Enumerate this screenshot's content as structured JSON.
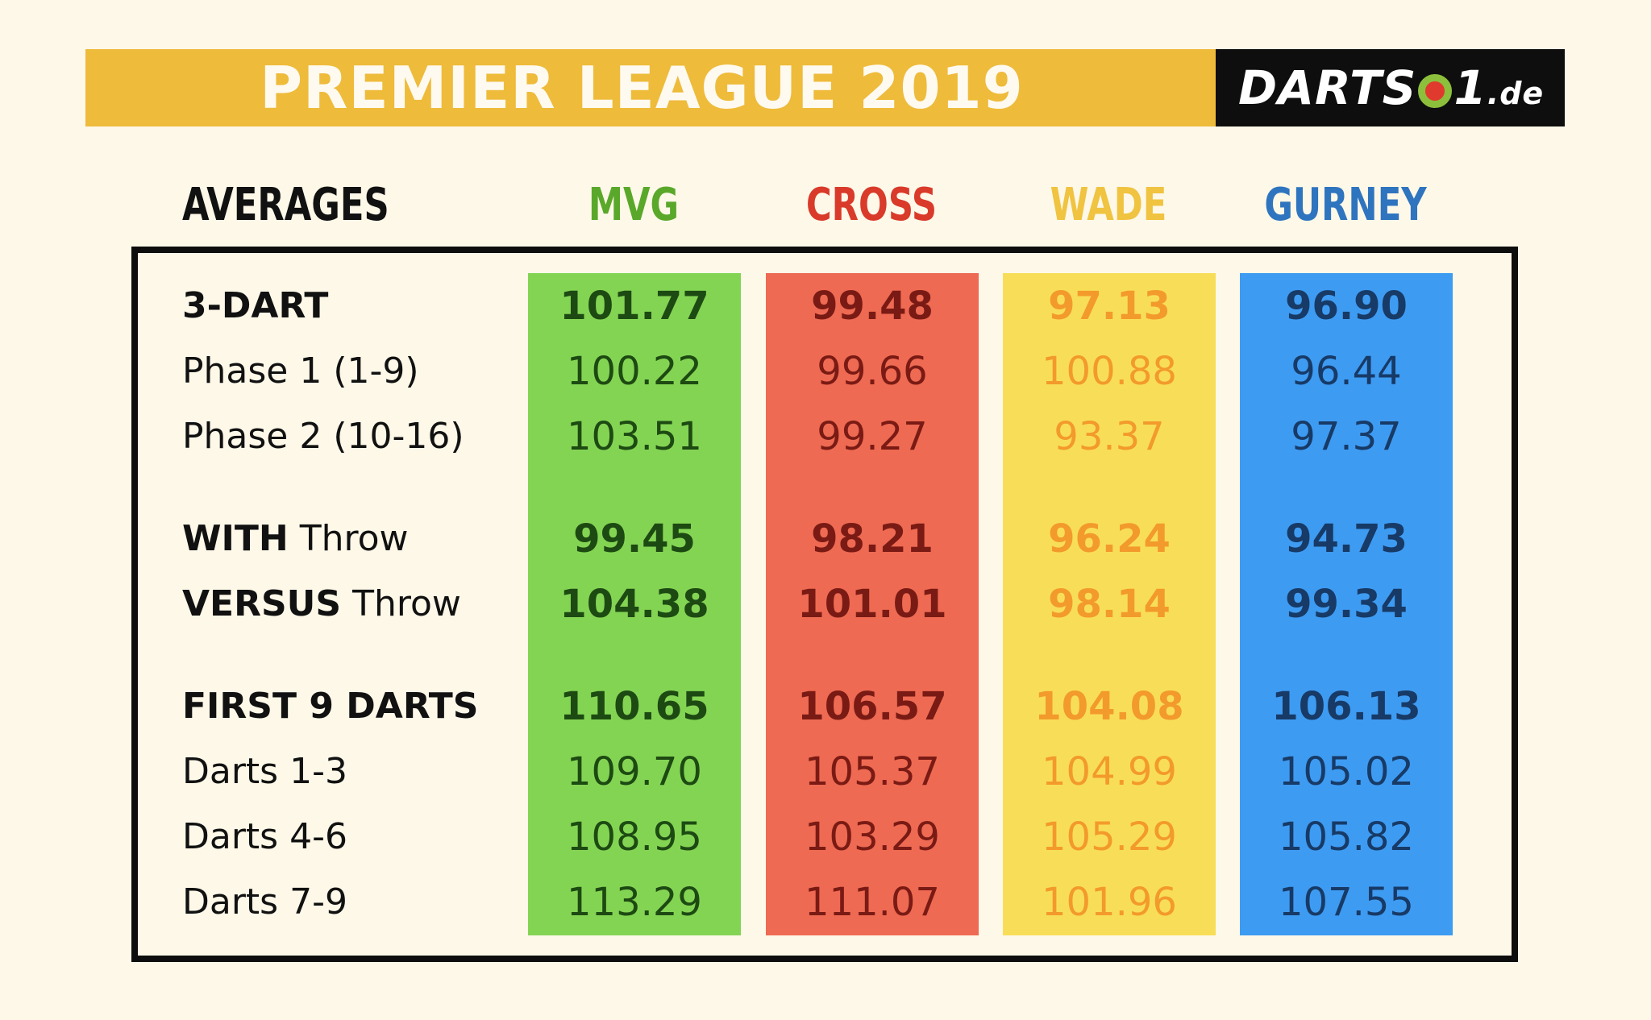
{
  "banner": {
    "title": "PREMIER LEAGUE 2019",
    "color": "#eebb3b"
  },
  "logo": {
    "text_main": "DARTS",
    "text_num": "1",
    "text_suffix": ".de"
  },
  "chart_data": {
    "type": "table",
    "header_label": "AVERAGES",
    "players": [
      {
        "name": "MVG",
        "header_color": "#5aa82a",
        "bg": "#84d454",
        "text": "#1d4a12"
      },
      {
        "name": "CROSS",
        "header_color": "#d93a2a",
        "bg": "#ee6a52",
        "text": "#7a1a14"
      },
      {
        "name": "WADE",
        "header_color": "#f0c340",
        "bg": "#f8de58",
        "text": "#f39a2c"
      },
      {
        "name": "GURNEY",
        "header_color": "#2f74bf",
        "bg": "#3e9bf2",
        "text": "#173a66"
      }
    ],
    "rows": [
      {
        "bold": "3-DART",
        "normal": "",
        "row_bold": true,
        "values": [
          "101.77",
          "99.48",
          "97.13",
          "96.90"
        ]
      },
      {
        "bold": "",
        "normal": "Phase 1 (1-9)",
        "row_bold": false,
        "values": [
          "100.22",
          "99.66",
          "100.88",
          "96.44"
        ]
      },
      {
        "bold": "",
        "normal": "Phase 2 (10-16)",
        "row_bold": false,
        "values": [
          "103.51",
          "99.27",
          "93.37",
          "97.37"
        ]
      },
      {
        "bold": "WITH",
        "normal": " Throw",
        "row_bold": true,
        "values": [
          "99.45",
          "98.21",
          "96.24",
          "94.73"
        ]
      },
      {
        "bold": "VERSUS",
        "normal": " Throw",
        "row_bold": true,
        "values": [
          "104.38",
          "101.01",
          "98.14",
          "99.34"
        ]
      },
      {
        "bold": "FIRST 9 DARTS",
        "normal": "",
        "row_bold": true,
        "values": [
          "110.65",
          "106.57",
          "104.08",
          "106.13"
        ]
      },
      {
        "bold": "",
        "normal": "Darts 1-3",
        "row_bold": false,
        "values": [
          "109.70",
          "105.37",
          "104.99",
          "105.02"
        ]
      },
      {
        "bold": "",
        "normal": "Darts 4-6",
        "row_bold": false,
        "values": [
          "108.95",
          "103.29",
          "105.29",
          "105.82"
        ]
      },
      {
        "bold": "",
        "normal": "Darts 7-9",
        "row_bold": false,
        "values": [
          "113.29",
          "111.07",
          "101.96",
          "107.55"
        ]
      }
    ]
  }
}
